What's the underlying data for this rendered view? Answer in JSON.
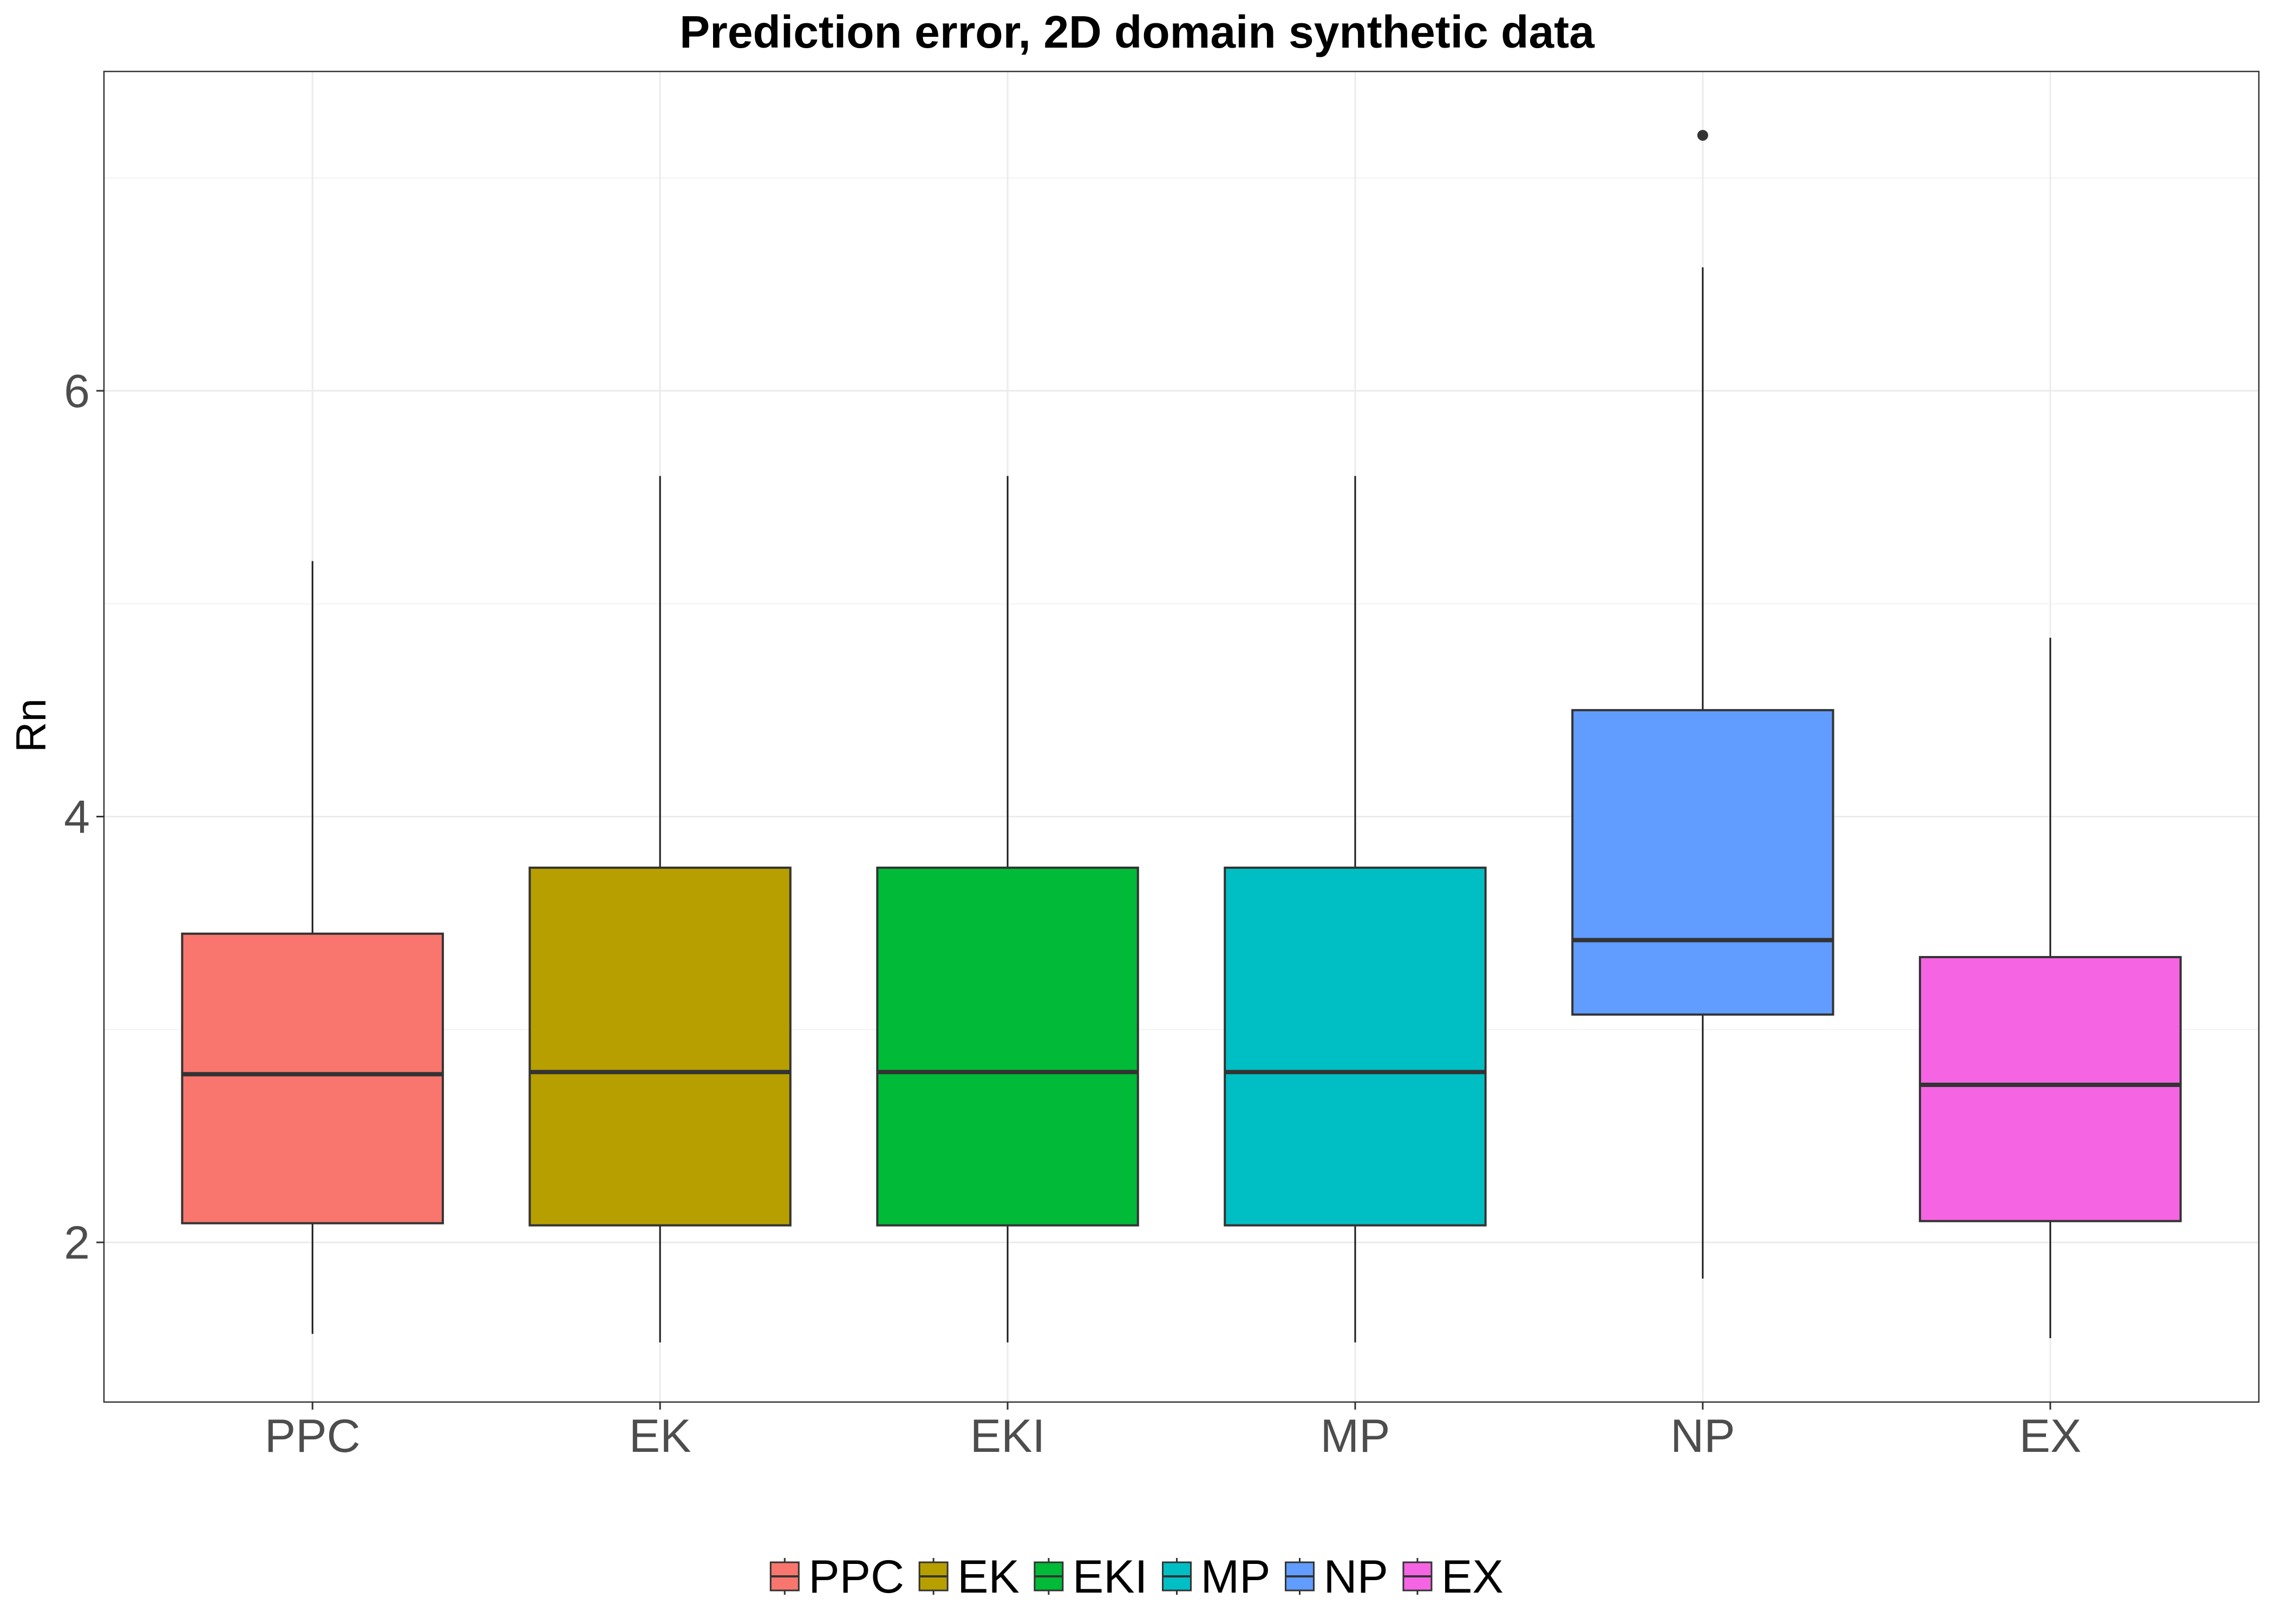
{
  "chart_data": {
    "type": "box",
    "title": "Prediction error, 2D domain synthetic data",
    "xlabel": "",
    "ylabel": "Rn",
    "ylim": [
      1.25,
      7.5
    ],
    "yticks": [
      2,
      4,
      6
    ],
    "grid": true,
    "legend_position": "bottom",
    "categories": [
      "PPC",
      "EK",
      "EKI",
      "MP",
      "NP",
      "EX"
    ],
    "series": [
      {
        "name": "PPC",
        "color": "#F8766D",
        "whisker_low": 1.57,
        "q1": 2.09,
        "median": 2.79,
        "q3": 3.45,
        "whisker_high": 5.2,
        "outliers": []
      },
      {
        "name": "EK",
        "color": "#B79F00",
        "whisker_low": 1.53,
        "q1": 2.08,
        "median": 2.8,
        "q3": 3.76,
        "whisker_high": 5.6,
        "outliers": []
      },
      {
        "name": "EKI",
        "color": "#00BA38",
        "whisker_low": 1.53,
        "q1": 2.08,
        "median": 2.8,
        "q3": 3.76,
        "whisker_high": 5.6,
        "outliers": []
      },
      {
        "name": "MP",
        "color": "#00BFC4",
        "whisker_low": 1.53,
        "q1": 2.08,
        "median": 2.8,
        "q3": 3.76,
        "whisker_high": 5.6,
        "outliers": []
      },
      {
        "name": "NP",
        "color": "#619CFF",
        "whisker_low": 1.83,
        "q1": 3.07,
        "median": 3.42,
        "q3": 4.5,
        "whisker_high": 6.58,
        "outliers": [
          7.2
        ]
      },
      {
        "name": "EX",
        "color": "#F564E3",
        "whisker_low": 1.55,
        "q1": 2.1,
        "median": 2.74,
        "q3": 3.34,
        "whisker_high": 4.84,
        "outliers": []
      }
    ]
  }
}
